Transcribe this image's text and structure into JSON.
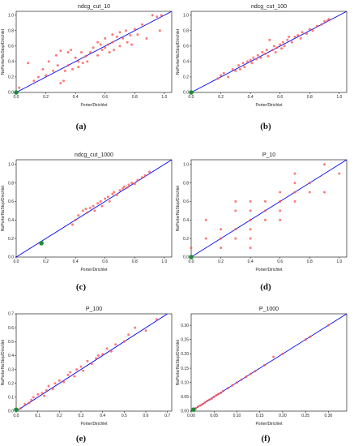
{
  "colors": {
    "point": "#ff4d4d",
    "diagonal": "#0000ee",
    "origin_marker": "#1e8c3a",
    "axis": "#000000"
  },
  "chart_data": [
    {
      "type": "scatter",
      "title": "ndcg_cut_10",
      "xlabel": "Porter/Dirichlet",
      "ylabel": "NoPorterNoStop/Dirichlet",
      "xlim": [
        0,
        1.05
      ],
      "ylim": [
        0,
        1.05
      ],
      "grid": false,
      "xticks": [
        "0.0",
        "0.2",
        "0.4",
        "0.6",
        "0.8",
        "1.0"
      ],
      "xtick_values": [
        0,
        0.2,
        0.4,
        0.6,
        0.8,
        1.0
      ],
      "yticks": [
        "0.0",
        "0.2",
        "0.4",
        "0.6",
        "0.8",
        "1.0"
      ],
      "ytick_values": [
        0,
        0.2,
        0.4,
        0.6,
        0.8,
        1.0
      ],
      "diagonal": [
        0,
        1.05
      ],
      "origin_marker": {
        "x": 0.0,
        "y": 0.0
      },
      "points": [
        [
          0.02,
          0.06
        ],
        [
          0.08,
          0.38
        ],
        [
          0.12,
          0.15
        ],
        [
          0.15,
          0.2
        ],
        [
          0.18,
          0.3
        ],
        [
          0.2,
          0.22
        ],
        [
          0.22,
          0.4
        ],
        [
          0.25,
          0.28
        ],
        [
          0.27,
          0.48
        ],
        [
          0.28,
          0.35
        ],
        [
          0.3,
          0.12
        ],
        [
          0.3,
          0.54
        ],
        [
          0.32,
          0.15
        ],
        [
          0.33,
          0.28
        ],
        [
          0.35,
          0.35
        ],
        [
          0.35,
          0.52
        ],
        [
          0.37,
          0.55
        ],
        [
          0.38,
          0.3
        ],
        [
          0.4,
          0.45
        ],
        [
          0.42,
          0.4
        ],
        [
          0.42,
          0.33
        ],
        [
          0.44,
          0.52
        ],
        [
          0.45,
          0.38
        ],
        [
          0.47,
          0.47
        ],
        [
          0.48,
          0.4
        ],
        [
          0.5,
          0.52
        ],
        [
          0.52,
          0.58
        ],
        [
          0.55,
          0.48
        ],
        [
          0.55,
          0.65
        ],
        [
          0.57,
          0.62
        ],
        [
          0.58,
          0.55
        ],
        [
          0.6,
          0.58
        ],
        [
          0.6,
          0.7
        ],
        [
          0.62,
          0.62
        ],
        [
          0.63,
          0.52
        ],
        [
          0.65,
          0.65
        ],
        [
          0.65,
          0.75
        ],
        [
          0.66,
          0.55
        ],
        [
          0.68,
          0.72
        ],
        [
          0.7,
          0.6
        ],
        [
          0.7,
          0.78
        ],
        [
          0.72,
          0.7
        ],
        [
          0.74,
          0.8
        ],
        [
          0.75,
          0.65
        ],
        [
          0.77,
          0.74
        ],
        [
          0.78,
          0.62
        ],
        [
          0.8,
          0.82
        ],
        [
          0.82,
          0.75
        ],
        [
          0.85,
          0.88
        ],
        [
          0.88,
          0.7
        ],
        [
          0.92,
          1.0
        ],
        [
          0.95,
          0.98
        ],
        [
          0.97,
          0.8
        ],
        [
          0.98,
          1.0
        ]
      ]
    },
    {
      "type": "scatter",
      "title": "ndcg_cut_100",
      "xlabel": "Porter/Dirichlet",
      "ylabel": "NoPorterNoStop/Dirichlet",
      "xlim": [
        0,
        1.05
      ],
      "ylim": [
        0,
        1.05
      ],
      "grid": false,
      "xticks": [
        "0.0",
        "0.2",
        "0.4",
        "0.6",
        "0.8",
        "1.0"
      ],
      "xtick_values": [
        0,
        0.2,
        0.4,
        0.6,
        0.8,
        1.0
      ],
      "yticks": [
        "0.0",
        "0.2",
        "0.4",
        "0.6",
        "0.8",
        "1.0"
      ],
      "ytick_values": [
        0,
        0.2,
        0.4,
        0.6,
        0.8,
        1.0
      ],
      "diagonal": [
        0,
        1.05
      ],
      "origin_marker": {
        "x": 0.0,
        "y": 0.0
      },
      "points": [
        [
          0.18,
          0.18
        ],
        [
          0.2,
          0.22
        ],
        [
          0.22,
          0.25
        ],
        [
          0.25,
          0.2
        ],
        [
          0.28,
          0.3
        ],
        [
          0.3,
          0.28
        ],
        [
          0.32,
          0.35
        ],
        [
          0.33,
          0.3
        ],
        [
          0.35,
          0.38
        ],
        [
          0.36,
          0.33
        ],
        [
          0.38,
          0.4
        ],
        [
          0.4,
          0.42
        ],
        [
          0.41,
          0.38
        ],
        [
          0.42,
          0.45
        ],
        [
          0.44,
          0.43
        ],
        [
          0.45,
          0.48
        ],
        [
          0.47,
          0.45
        ],
        [
          0.48,
          0.52
        ],
        [
          0.5,
          0.5
        ],
        [
          0.51,
          0.55
        ],
        [
          0.52,
          0.47
        ],
        [
          0.53,
          0.68
        ],
        [
          0.55,
          0.55
        ],
        [
          0.56,
          0.6
        ],
        [
          0.57,
          0.52
        ],
        [
          0.58,
          0.58
        ],
        [
          0.6,
          0.62
        ],
        [
          0.61,
          0.57
        ],
        [
          0.62,
          0.65
        ],
        [
          0.63,
          0.6
        ],
        [
          0.65,
          0.68
        ],
        [
          0.66,
          0.72
        ],
        [
          0.68,
          0.65
        ],
        [
          0.7,
          0.72
        ],
        [
          0.72,
          0.74
        ],
        [
          0.74,
          0.7
        ],
        [
          0.75,
          0.78
        ],
        [
          0.78,
          0.76
        ],
        [
          0.8,
          0.82
        ],
        [
          0.82,
          0.8
        ],
        [
          0.85,
          0.86
        ],
        [
          0.88,
          0.88
        ],
        [
          0.9,
          0.92
        ],
        [
          0.92,
          0.93
        ],
        [
          0.93,
          0.95
        ]
      ]
    },
    {
      "type": "scatter",
      "title": "ndcg_cut_1000",
      "xlabel": "Porter/Dirichlet",
      "ylabel": "NoPorterNoStop/Dirichlet",
      "xlim": [
        0,
        1.05
      ],
      "ylim": [
        0,
        1.05
      ],
      "grid": false,
      "xticks": [
        "0.0",
        "0.2",
        "0.4",
        "0.6",
        "0.8",
        "1.0"
      ],
      "xtick_values": [
        0,
        0.2,
        0.4,
        0.6,
        0.8,
        1.0
      ],
      "yticks": [
        "0.0",
        "0.2",
        "0.4",
        "0.6",
        "0.8",
        "1.0"
      ],
      "ytick_values": [
        0,
        0.2,
        0.4,
        0.6,
        0.8,
        1.0
      ],
      "diagonal": [
        0,
        1.05
      ],
      "origin_marker": {
        "x": 0.17,
        "y": 0.15
      },
      "points": [
        [
          0.38,
          0.35
        ],
        [
          0.4,
          0.4
        ],
        [
          0.42,
          0.45
        ],
        [
          0.45,
          0.5
        ],
        [
          0.47,
          0.52
        ],
        [
          0.48,
          0.48
        ],
        [
          0.5,
          0.53
        ],
        [
          0.52,
          0.55
        ],
        [
          0.53,
          0.5
        ],
        [
          0.55,
          0.58
        ],
        [
          0.57,
          0.6
        ],
        [
          0.58,
          0.55
        ],
        [
          0.6,
          0.63
        ],
        [
          0.62,
          0.65
        ],
        [
          0.63,
          0.6
        ],
        [
          0.65,
          0.68
        ],
        [
          0.66,
          0.7
        ],
        [
          0.68,
          0.67
        ],
        [
          0.7,
          0.72
        ],
        [
          0.72,
          0.74
        ],
        [
          0.73,
          0.76
        ],
        [
          0.75,
          0.75
        ],
        [
          0.76,
          0.78
        ],
        [
          0.78,
          0.8
        ],
        [
          0.8,
          0.79
        ],
        [
          0.82,
          0.83
        ],
        [
          0.85,
          0.86
        ],
        [
          0.87,
          0.88
        ],
        [
          0.9,
          0.92
        ]
      ]
    },
    {
      "type": "scatter",
      "title": "P_10",
      "xlabel": "Porter/Dirichlet",
      "ylabel": "NoPorterNoStop/Dirichlet",
      "xlim": [
        0,
        1.05
      ],
      "ylim": [
        0,
        1.05
      ],
      "grid": false,
      "xticks": [
        "0.0",
        "0.2",
        "0.4",
        "0.6",
        "0.8",
        "1.0"
      ],
      "xtick_values": [
        0,
        0.2,
        0.4,
        0.6,
        0.8,
        1.0
      ],
      "yticks": [
        "0.0",
        "0.2",
        "0.4",
        "0.6",
        "0.8",
        "1.0"
      ],
      "ytick_values": [
        0,
        0.2,
        0.4,
        0.6,
        0.8,
        1.0
      ],
      "diagonal": [
        0,
        1.05
      ],
      "origin_marker": {
        "x": 0.0,
        "y": 0.0
      },
      "points": [
        [
          0.0,
          0.1
        ],
        [
          0.1,
          0.2
        ],
        [
          0.1,
          0.4
        ],
        [
          0.2,
          0.1
        ],
        [
          0.2,
          0.2
        ],
        [
          0.2,
          0.3
        ],
        [
          0.3,
          0.2
        ],
        [
          0.3,
          0.3
        ],
        [
          0.3,
          0.5
        ],
        [
          0.3,
          0.6
        ],
        [
          0.4,
          0.1
        ],
        [
          0.4,
          0.2
        ],
        [
          0.4,
          0.3
        ],
        [
          0.4,
          0.4
        ],
        [
          0.4,
          0.5
        ],
        [
          0.4,
          0.6
        ],
        [
          0.5,
          0.4
        ],
        [
          0.5,
          0.5
        ],
        [
          0.5,
          0.6
        ],
        [
          0.6,
          0.4
        ],
        [
          0.6,
          0.5
        ],
        [
          0.6,
          0.6
        ],
        [
          0.6,
          0.7
        ],
        [
          0.7,
          0.6
        ],
        [
          0.7,
          0.7
        ],
        [
          0.7,
          0.8
        ],
        [
          0.7,
          0.9
        ],
        [
          0.8,
          0.7
        ],
        [
          0.8,
          0.8
        ],
        [
          0.9,
          0.7
        ],
        [
          0.9,
          1.0
        ],
        [
          1.0,
          0.9
        ]
      ]
    },
    {
      "type": "scatter",
      "title": "P_100",
      "xlabel": "Porter/Dirichlet",
      "ylabel": "NoPorterNoStop/Dirichlet",
      "xlim": [
        0,
        0.72
      ],
      "ylim": [
        0,
        0.7
      ],
      "grid": false,
      "xticks": [
        "0.0",
        "0.1",
        "0.2",
        "0.3",
        "0.4",
        "0.5",
        "0.6",
        "0.7"
      ],
      "xtick_values": [
        0,
        0.1,
        0.2,
        0.3,
        0.4,
        0.5,
        0.6,
        0.7
      ],
      "yticks": [
        "0.0",
        "0.1",
        "0.2",
        "0.3",
        "0.4",
        "0.5",
        "0.6",
        "0.7"
      ],
      "ytick_values": [
        0,
        0.1,
        0.2,
        0.3,
        0.4,
        0.5,
        0.6,
        0.7
      ],
      "diagonal": [
        0,
        0.7
      ],
      "origin_marker": {
        "x": 0.0,
        "y": 0.01
      },
      "points": [
        [
          0.02,
          0.02
        ],
        [
          0.04,
          0.05
        ],
        [
          0.06,
          0.06
        ],
        [
          0.07,
          0.08
        ],
        [
          0.08,
          0.1
        ],
        [
          0.1,
          0.12
        ],
        [
          0.12,
          0.13
        ],
        [
          0.13,
          0.11
        ],
        [
          0.14,
          0.15
        ],
        [
          0.15,
          0.18
        ],
        [
          0.17,
          0.16
        ],
        [
          0.18,
          0.2
        ],
        [
          0.2,
          0.22
        ],
        [
          0.22,
          0.21
        ],
        [
          0.24,
          0.26
        ],
        [
          0.25,
          0.28
        ],
        [
          0.27,
          0.25
        ],
        [
          0.28,
          0.3
        ],
        [
          0.3,
          0.32
        ],
        [
          0.31,
          0.29
        ],
        [
          0.33,
          0.36
        ],
        [
          0.35,
          0.34
        ],
        [
          0.37,
          0.38
        ],
        [
          0.38,
          0.4
        ],
        [
          0.4,
          0.41
        ],
        [
          0.42,
          0.45
        ],
        [
          0.44,
          0.43
        ],
        [
          0.46,
          0.48
        ],
        [
          0.5,
          0.5
        ],
        [
          0.52,
          0.55
        ],
        [
          0.55,
          0.6
        ],
        [
          0.6,
          0.58
        ],
        [
          0.65,
          0.66
        ]
      ]
    },
    {
      "type": "scatter",
      "title": "P_1000",
      "xlabel": "Porter/Dirichlet",
      "ylabel": "NoPorterNoStop/Dirichlet",
      "xlim": [
        0,
        0.34
      ],
      "ylim": [
        0,
        0.34
      ],
      "grid": false,
      "xticks": [
        "0.00",
        "0.05",
        "0.10",
        "0.15",
        "0.20",
        "0.25",
        "0.30"
      ],
      "xtick_values": [
        0,
        0.05,
        0.1,
        0.15,
        0.2,
        0.25,
        0.3
      ],
      "yticks": [
        "0.00",
        "0.05",
        "0.10",
        "0.15",
        "0.20",
        "0.25",
        "0.30"
      ],
      "ytick_values": [
        0,
        0.05,
        0.1,
        0.15,
        0.2,
        0.25,
        0.3
      ],
      "diagonal": [
        0,
        0.34
      ],
      "origin_marker": {
        "x": 0.005,
        "y": 0.005
      },
      "points": [
        [
          0.01,
          0.01
        ],
        [
          0.015,
          0.016
        ],
        [
          0.02,
          0.02
        ],
        [
          0.025,
          0.024
        ],
        [
          0.03,
          0.03
        ],
        [
          0.035,
          0.036
        ],
        [
          0.04,
          0.04
        ],
        [
          0.045,
          0.044
        ],
        [
          0.05,
          0.05
        ],
        [
          0.055,
          0.056
        ],
        [
          0.06,
          0.06
        ],
        [
          0.065,
          0.064
        ],
        [
          0.07,
          0.07
        ],
        [
          0.08,
          0.08
        ],
        [
          0.09,
          0.09
        ],
        [
          0.1,
          0.1
        ],
        [
          0.11,
          0.11
        ],
        [
          0.12,
          0.12
        ],
        [
          0.13,
          0.13
        ],
        [
          0.14,
          0.14
        ],
        [
          0.16,
          0.16
        ],
        [
          0.18,
          0.19
        ],
        [
          0.2,
          0.2
        ],
        [
          0.25,
          0.25
        ],
        [
          0.26,
          0.26
        ],
        [
          0.3,
          0.3
        ]
      ]
    }
  ],
  "subfigures": [
    "(a)",
    "(b)",
    "(c)",
    "(d)",
    "(e)",
    "(f)"
  ]
}
